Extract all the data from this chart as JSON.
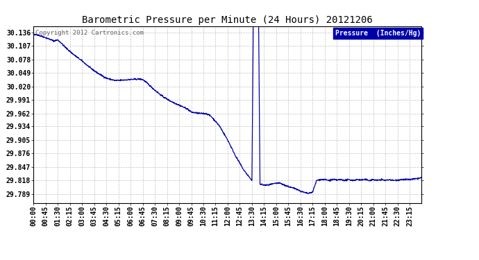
{
  "title": "Barometric Pressure per Minute (24 Hours) 20121206",
  "copyright": "Copyright 2012 Cartronics.com",
  "legend_label": "Pressure  (Inches/Hg)",
  "line_color": "#0000AA",
  "background_color": "#ffffff",
  "plot_bg_color": "#ffffff",
  "grid_color": "#bbbbbb",
  "yticks": [
    29.789,
    29.818,
    29.847,
    29.876,
    29.905,
    29.934,
    29.962,
    29.991,
    30.02,
    30.049,
    30.078,
    30.107,
    30.136
  ],
  "ylim": [
    29.77,
    30.15
  ],
  "x_tick_labels": [
    "00:00",
    "00:45",
    "01:30",
    "02:15",
    "03:00",
    "03:45",
    "04:30",
    "05:15",
    "06:00",
    "06:45",
    "07:30",
    "08:15",
    "09:00",
    "09:45",
    "10:30",
    "11:15",
    "12:00",
    "12:45",
    "13:30",
    "14:15",
    "15:00",
    "15:45",
    "16:30",
    "17:15",
    "18:00",
    "18:45",
    "19:30",
    "20:15",
    "21:00",
    "21:45",
    "22:30",
    "23:15"
  ],
  "legend_box_color": "#0000AA",
  "legend_text_color": "#ffffff",
  "title_fontsize": 10,
  "tick_fontsize": 7,
  "copyright_color": "#666666"
}
